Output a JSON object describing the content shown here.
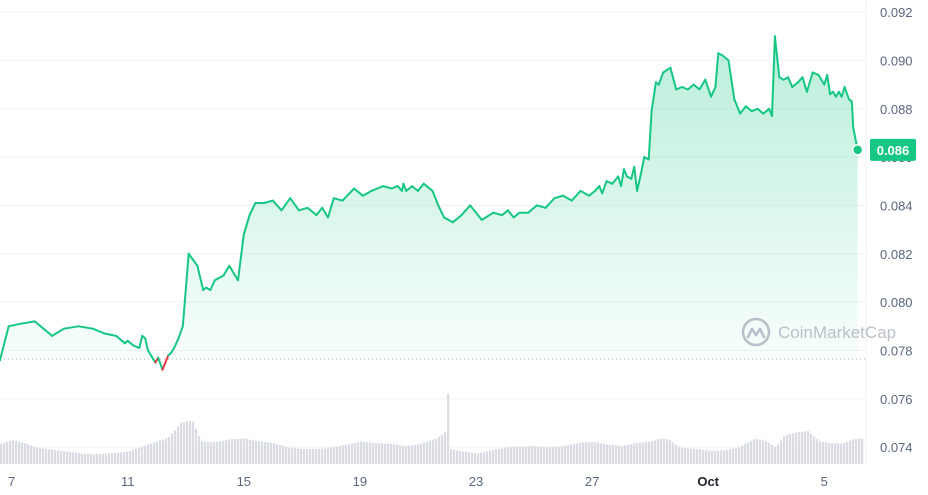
{
  "chart_data": {
    "type": "area",
    "y_axis_position": "right",
    "ylim": [
      0.0733,
      0.0925
    ],
    "y_ticks": [
      "0.092",
      "0.090",
      "0.088",
      "0.086",
      "0.084",
      "0.082",
      "0.080",
      "0.078",
      "0.076",
      "0.074"
    ],
    "x_ticks": [
      "7",
      "11",
      "15",
      "19",
      "23",
      "27",
      "Oct",
      "5"
    ],
    "x_tick_positions": [
      7,
      11,
      15,
      19,
      23,
      27,
      31,
      35
    ],
    "xlim": [
      6.6,
      36.3
    ],
    "reference_value": 0.07764,
    "current_price_label": "0.086",
    "colors": {
      "up": "#16c784",
      "down": "#ea3943",
      "fill": "#16c784",
      "volume": "#d9dde3"
    },
    "watermark": "CoinMarketCap",
    "price_series": {
      "x": [
        6.6,
        6.9,
        7.3,
        7.8,
        8.1,
        8.4,
        8.8,
        9.3,
        9.8,
        10.2,
        10.6,
        10.9,
        11.0,
        11.2,
        11.4,
        11.5,
        11.6,
        11.7,
        11.85,
        11.95,
        12.05,
        12.2,
        12.3,
        12.4,
        12.5,
        12.6,
        12.75,
        12.9,
        13.1,
        13.4,
        13.6,
        13.7,
        13.85,
        14.0,
        14.15,
        14.3,
        14.5,
        14.8,
        15.0,
        15.2,
        15.4,
        15.7,
        16.0,
        16.3,
        16.6,
        16.9,
        17.2,
        17.5,
        17.7,
        17.9,
        18.1,
        18.4,
        18.8,
        19.1,
        19.4,
        19.8,
        20.1,
        20.3,
        20.45,
        20.5,
        20.6,
        20.8,
        21.0,
        21.2,
        21.5,
        21.7,
        21.9,
        22.2,
        22.5,
        22.8,
        23.2,
        23.6,
        23.9,
        24.1,
        24.3,
        24.5,
        24.8,
        25.1,
        25.4,
        25.7,
        26.0,
        26.3,
        26.6,
        26.9,
        27.1,
        27.25,
        27.35,
        27.5,
        27.7,
        27.9,
        28.0,
        28.1,
        28.2,
        28.35,
        28.45,
        28.55,
        28.7,
        28.8,
        28.95,
        29.05,
        29.2,
        29.3,
        29.45,
        29.7,
        29.9,
        30.1,
        30.3,
        30.5,
        30.7,
        30.9,
        31.1,
        31.25,
        31.35,
        31.5,
        31.7,
        31.8,
        31.9,
        32.1,
        32.3,
        32.5,
        32.7,
        32.9,
        33.1,
        33.2,
        33.3,
        33.45,
        33.6,
        33.75,
        33.9,
        34.1,
        34.25,
        34.4,
        34.6,
        34.8,
        35.0,
        35.1,
        35.2,
        35.3,
        35.4,
        35.5,
        35.6,
        35.7,
        35.85,
        35.95,
        36.0,
        36.1,
        36.15
      ],
      "y": [
        0.0776,
        0.079,
        0.0791,
        0.0792,
        0.0789,
        0.0786,
        0.0789,
        0.079,
        0.0789,
        0.0787,
        0.0786,
        0.0783,
        0.0784,
        0.0782,
        0.0781,
        0.0786,
        0.0785,
        0.078,
        0.0777,
        0.0775,
        0.0777,
        0.0772,
        0.0775,
        0.0778,
        0.0779,
        0.0781,
        0.0785,
        0.079,
        0.082,
        0.0815,
        0.0805,
        0.0806,
        0.0805,
        0.0809,
        0.081,
        0.0811,
        0.0815,
        0.0809,
        0.0828,
        0.0836,
        0.0841,
        0.0841,
        0.0842,
        0.0838,
        0.0843,
        0.0838,
        0.0839,
        0.0836,
        0.0839,
        0.0835,
        0.0843,
        0.0842,
        0.0847,
        0.0844,
        0.0846,
        0.0848,
        0.0847,
        0.0848,
        0.0846,
        0.0849,
        0.0846,
        0.0848,
        0.0846,
        0.0849,
        0.0846,
        0.084,
        0.0835,
        0.0833,
        0.0836,
        0.084,
        0.0834,
        0.0837,
        0.0836,
        0.0838,
        0.0835,
        0.0837,
        0.0837,
        0.084,
        0.0839,
        0.0843,
        0.0844,
        0.0842,
        0.0846,
        0.0844,
        0.0846,
        0.0848,
        0.0845,
        0.085,
        0.0849,
        0.0852,
        0.0848,
        0.0855,
        0.0852,
        0.0851,
        0.0856,
        0.0846,
        0.0854,
        0.086,
        0.0859,
        0.0879,
        0.0891,
        0.089,
        0.0895,
        0.0897,
        0.0888,
        0.0889,
        0.0888,
        0.089,
        0.0888,
        0.0892,
        0.0885,
        0.0889,
        0.0903,
        0.0902,
        0.09,
        0.0892,
        0.0884,
        0.0878,
        0.0881,
        0.0879,
        0.088,
        0.0878,
        0.088,
        0.0877,
        0.091,
        0.0893,
        0.0892,
        0.0893,
        0.0889,
        0.0891,
        0.0893,
        0.0887,
        0.0895,
        0.0894,
        0.089,
        0.0894,
        0.0886,
        0.0887,
        0.0885,
        0.0887,
        0.0885,
        0.0889,
        0.0884,
        0.0883,
        0.0872,
        0.0866,
        0.0863
      ]
    },
    "volume_series": {
      "x": [
        6.6,
        7.0,
        7.4,
        7.8,
        8.2,
        8.6,
        9.0,
        9.4,
        9.8,
        10.2,
        10.6,
        11.0,
        11.4,
        11.8,
        12.0,
        12.4,
        12.8,
        13.2,
        13.5,
        14.0,
        14.5,
        15.0,
        15.5,
        16.0,
        16.5,
        17.0,
        17.5,
        18.0,
        18.5,
        19.0,
        19.5,
        20.0,
        20.5,
        21.0,
        21.3,
        21.6,
        21.9,
        22.0,
        22.1,
        22.3,
        22.7,
        23.0,
        23.5,
        24.0,
        24.5,
        25.0,
        25.5,
        26.0,
        26.5,
        27.0,
        27.5,
        28.0,
        28.5,
        29.0,
        29.3,
        29.6,
        30.0,
        30.5,
        31.0,
        31.5,
        32.0,
        32.3,
        32.6,
        33.0,
        33.3,
        33.6,
        34.0,
        34.4,
        34.8,
        35.2,
        35.6,
        35.9,
        36.15
      ],
      "v": [
        27,
        32,
        28,
        22,
        20,
        18,
        16,
        14,
        13,
        14,
        15,
        17,
        22,
        28,
        30,
        36,
        55,
        58,
        30,
        29,
        33,
        34,
        30,
        28,
        22,
        20,
        20,
        22,
        26,
        30,
        28,
        27,
        24,
        26,
        30,
        34,
        42,
        95,
        20,
        18,
        16,
        14,
        18,
        22,
        23,
        24,
        22,
        24,
        28,
        30,
        26,
        24,
        28,
        30,
        34,
        33,
        22,
        20,
        18,
        18,
        22,
        28,
        34,
        30,
        22,
        38,
        42,
        44,
        30,
        28,
        27,
        32,
        34
      ]
    }
  }
}
